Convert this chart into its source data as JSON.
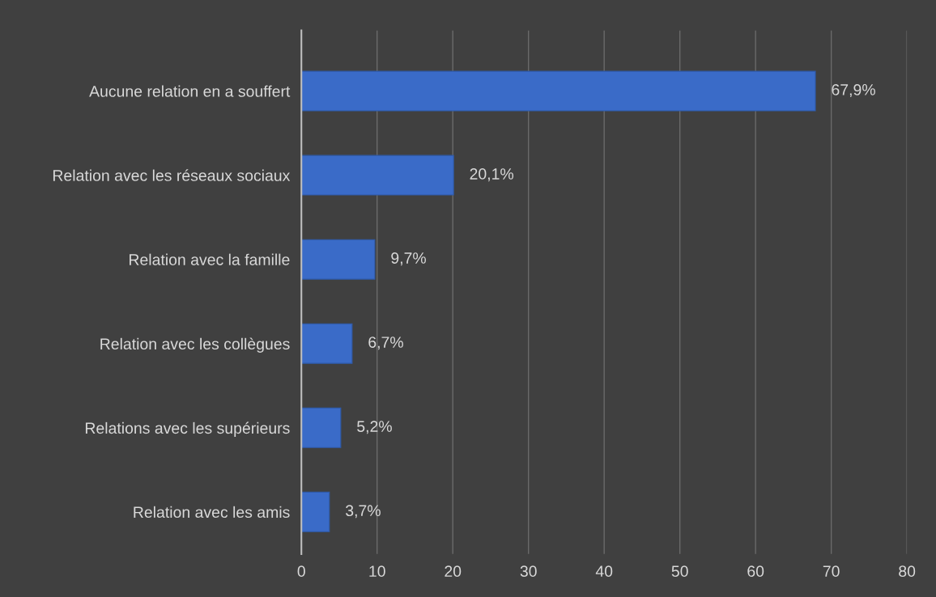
{
  "chart_data": {
    "type": "bar",
    "orientation": "horizontal",
    "categories": [
      "Aucune relation en a souffert",
      "Relation avec les réseaux sociaux",
      "Relation avec la famille",
      "Relation avec les collègues",
      "Relations avec les supérieurs",
      "Relation avec les amis"
    ],
    "values": [
      67.9,
      20.1,
      9.7,
      6.7,
      5.2,
      3.7
    ],
    "value_labels": [
      "67,9%",
      "20,1%",
      "9,7%",
      "6,7%",
      "5,2%",
      "3,7%"
    ],
    "color": "#3a6bc8",
    "xlim": [
      0,
      80
    ],
    "xticks": [
      0,
      10,
      20,
      30,
      40,
      50,
      60,
      70,
      80
    ],
    "grid": "x"
  }
}
